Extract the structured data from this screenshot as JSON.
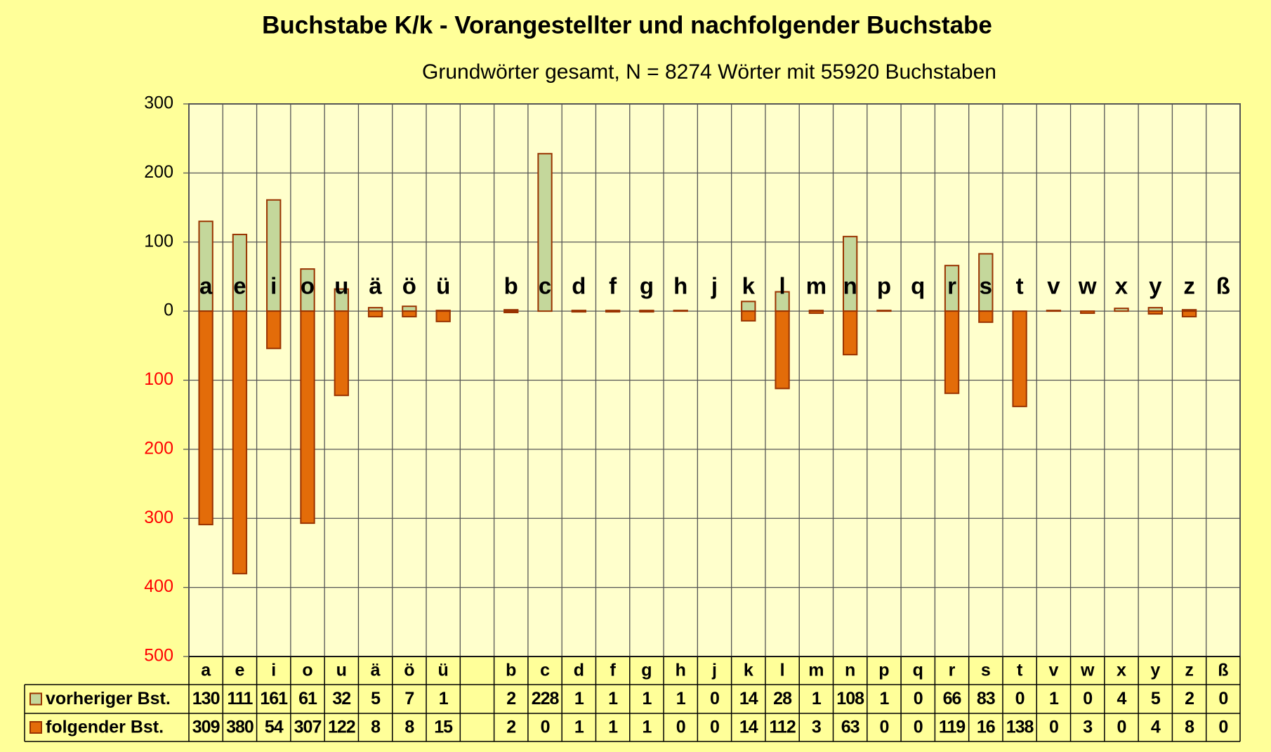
{
  "chart_data": {
    "type": "bar",
    "title": "Buchstabe K/k - Vorangestellter und nachfolgender Buchstabe",
    "subtitle": "Grundwörter gesamt,  N = 8274 Wörter mit 55920 Buchstaben",
    "categories": [
      "a",
      "e",
      "i",
      "o",
      "u",
      "ä",
      "ö",
      "ü",
      null,
      "b",
      "c",
      "d",
      "f",
      "g",
      "h",
      "j",
      "k",
      "l",
      "m",
      "n",
      "p",
      "q",
      "r",
      "s",
      "t",
      "v",
      "w",
      "x",
      "y",
      "z",
      "ß"
    ],
    "series": [
      {
        "name": "vorheriger Bst.",
        "color": "#c4d79b",
        "values": [
          130,
          111,
          161,
          61,
          32,
          5,
          7,
          1,
          null,
          2,
          228,
          1,
          1,
          1,
          1,
          0,
          14,
          28,
          1,
          108,
          1,
          0,
          66,
          83,
          0,
          1,
          0,
          4,
          5,
          2,
          0
        ]
      },
      {
        "name": "folgender Bst.",
        "color": "#e36c09",
        "values": [
          -309,
          -380,
          -54,
          -307,
          -122,
          -8,
          -8,
          -15,
          null,
          -2,
          0,
          -1,
          -1,
          -1,
          0,
          0,
          -14,
          -112,
          -3,
          -63,
          0,
          0,
          -119,
          -16,
          -138,
          0,
          -3,
          0,
          -4,
          -8,
          0
        ],
        "value_labels": [
          "309",
          "380",
          "54",
          "307",
          "122",
          "8",
          "8",
          "15",
          null,
          "2",
          "0",
          "1",
          "1",
          "1",
          "0",
          "0",
          "14",
          "112",
          "3",
          "63",
          "0",
          "0",
          "119",
          "16",
          "138",
          "0",
          "3",
          "0",
          "4",
          "8",
          "0"
        ]
      }
    ],
    "bar_edge_color": "#993300",
    "negative_tick_color": "#ff0000",
    "ylim": [
      -500,
      300
    ],
    "yticks": [
      300,
      200,
      100,
      0,
      {
        "value": -100,
        "label": "100"
      },
      {
        "value": -200,
        "label": "200"
      },
      {
        "value": -300,
        "label": "300"
      },
      {
        "value": -400,
        "label": "400"
      },
      {
        "value": -500,
        "label": "500"
      }
    ],
    "grid": true
  }
}
